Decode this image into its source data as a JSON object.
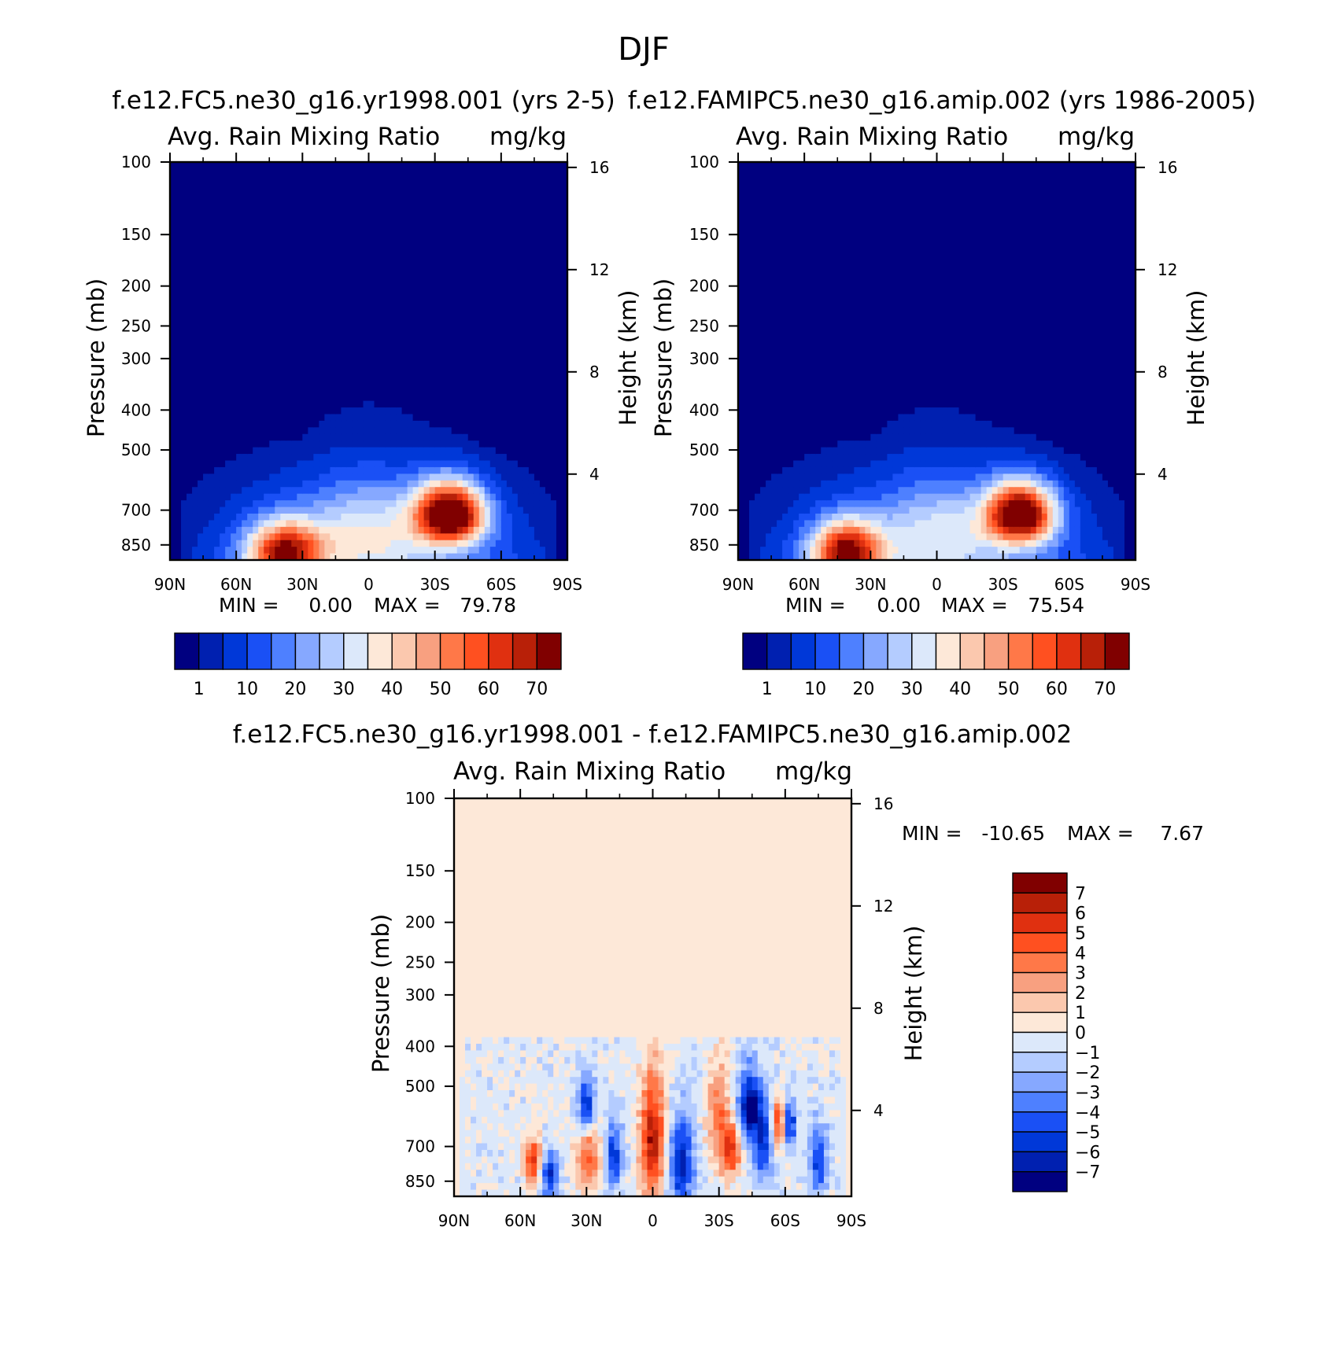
{
  "figure_title": "DJF",
  "colors": {
    "seq": [
      "#000080",
      "#0020b0",
      "#0038d8",
      "#1a50f5",
      "#4e80ff",
      "#86a8ff",
      "#b4ccff",
      "#dce8fa",
      "#fde8d8",
      "#fbc8ae",
      "#f8a080",
      "#ff7848",
      "#ff5020",
      "#e03010",
      "#b82008",
      "#800000"
    ],
    "diff": [
      "#000080",
      "#0020b0",
      "#0038d8",
      "#1a50f5",
      "#4e80ff",
      "#86a8ff",
      "#b4ccff",
      "#dce8fa",
      "#fde8d8",
      "#fbc8ae",
      "#f8a080",
      "#ff7848",
      "#ff5020",
      "#e03010",
      "#b82008",
      "#800000"
    ]
  },
  "chart_data": [
    {
      "type": "heatmap",
      "id": "case",
      "title": "f.e12.FC5.ne30_g16.yr1998.001 (yrs 2-5)",
      "left_label": "Avg. Rain Mixing Ratio",
      "right_label": "mg/kg",
      "ylabel": "Pressure (mb)",
      "y2label": "Height (km)",
      "x_ticks": [
        "90N",
        "60N",
        "30N",
        "0",
        "30S",
        "60S",
        "90S"
      ],
      "y_ticks": [
        "100",
        "150",
        "200",
        "250",
        "300",
        "400",
        "500",
        "700",
        "850"
      ],
      "y_tick_values": [
        100,
        150,
        200,
        250,
        300,
        400,
        500,
        700,
        850
      ],
      "ylim": [
        100,
        925
      ],
      "y2_ticks": [
        "16",
        "12",
        "8",
        "4"
      ],
      "y2_tick_values": [
        16,
        12,
        8,
        4
      ],
      "min_label": "MIN =",
      "min_value": "0.00",
      "max_label": "MAX =",
      "max_value": "79.78",
      "colorbar_labels": [
        "1",
        "10",
        "20",
        "30",
        "40",
        "50",
        "60",
        "70"
      ],
      "levels": [
        0.5,
        1,
        5,
        10,
        15,
        20,
        25,
        30,
        35,
        40,
        45,
        50,
        55,
        60,
        65,
        70,
        75
      ],
      "blobs": [
        {
          "lat": 38,
          "p": 880,
          "amp": 58,
          "slat": 12,
          "sp": 100
        },
        {
          "lat": -37,
          "p": 715,
          "amp": 80,
          "slat": 11,
          "sp": 85
        },
        {
          "lat": 0,
          "p": 790,
          "amp": 24,
          "slat": 20,
          "sp": 160
        }
      ]
    },
    {
      "type": "heatmap",
      "id": "control",
      "title": "f.e12.FAMIPC5.ne30_g16.amip.002 (yrs 1986-2005)",
      "left_label": "Avg. Rain Mixing Ratio",
      "right_label": "mg/kg",
      "ylabel": "Pressure (mb)",
      "y2label": "Height (km)",
      "x_ticks": [
        "90N",
        "60N",
        "30N",
        "0",
        "30S",
        "60S",
        "90S"
      ],
      "y_ticks": [
        "100",
        "150",
        "200",
        "250",
        "300",
        "400",
        "500",
        "700",
        "850"
      ],
      "y_tick_values": [
        100,
        150,
        200,
        250,
        300,
        400,
        500,
        700,
        850
      ],
      "ylim": [
        100,
        925
      ],
      "y2_ticks": [
        "16",
        "12",
        "8",
        "4"
      ],
      "y2_tick_values": [
        16,
        12,
        8,
        4
      ],
      "min_label": "MIN =",
      "min_value": "0.00",
      "max_label": "MAX =",
      "max_value": "75.54",
      "colorbar_labels": [
        "1",
        "10",
        "20",
        "30",
        "40",
        "50",
        "60",
        "70"
      ],
      "levels": [
        0.5,
        1,
        5,
        10,
        15,
        20,
        25,
        30,
        35,
        40,
        45,
        50,
        55,
        60,
        65,
        70,
        75
      ],
      "blobs": [
        {
          "lat": 41,
          "p": 880,
          "amp": 62,
          "slat": 11,
          "sp": 100
        },
        {
          "lat": -38,
          "p": 715,
          "amp": 76,
          "slat": 11,
          "sp": 85
        },
        {
          "lat": 0,
          "p": 790,
          "amp": 22,
          "slat": 20,
          "sp": 160
        }
      ]
    },
    {
      "type": "heatmap",
      "id": "difference",
      "title": "f.e12.FC5.ne30_g16.yr1998.001 - f.e12.FAMIPC5.ne30_g16.amip.002",
      "left_label": "Avg. Rain Mixing Ratio",
      "right_label": "mg/kg",
      "ylabel": "Pressure (mb)",
      "y2label": "Height (km)",
      "x_ticks": [
        "90N",
        "60N",
        "30N",
        "0",
        "30S",
        "60S",
        "90S"
      ],
      "y_ticks": [
        "100",
        "150",
        "200",
        "250",
        "300",
        "400",
        "500",
        "700",
        "850"
      ],
      "y_tick_values": [
        100,
        150,
        200,
        250,
        300,
        400,
        500,
        700,
        850
      ],
      "ylim": [
        100,
        925
      ],
      "y2_ticks": [
        "16",
        "12",
        "8",
        "4"
      ],
      "y2_tick_values": [
        16,
        12,
        8,
        4
      ],
      "min_label": "MIN =",
      "min_value": "-10.65",
      "max_label": "MAX =",
      "max_value": "7.67",
      "colorbar_labels": [
        "7",
        "6",
        "5",
        "4",
        "3",
        "2",
        "1",
        "0",
        "-1",
        "-2",
        "-3",
        "-4",
        "-5",
        "-6",
        "-7"
      ],
      "levels": [
        -7,
        -6,
        -5,
        -4,
        -3,
        -2,
        -1,
        0,
        1,
        2,
        3,
        4,
        5,
        6,
        7
      ],
      "blobs": [
        {
          "lat": 54,
          "p": 760,
          "amp": 6,
          "slat": 3,
          "sp": 70
        },
        {
          "lat": 47,
          "p": 815,
          "amp": -6,
          "slat": 3,
          "sp": 70
        },
        {
          "lat": 29,
          "p": 720,
          "amp": 5,
          "slat": 4,
          "sp": 120
        },
        {
          "lat": 30,
          "p": 565,
          "amp": -7,
          "slat": 3,
          "sp": 70
        },
        {
          "lat": 18,
          "p": 740,
          "amp": -5,
          "slat": 3,
          "sp": 100
        },
        {
          "lat": 0,
          "p": 680,
          "amp": 7,
          "slat": 4,
          "sp": 180
        },
        {
          "lat": -13,
          "p": 770,
          "amp": -6,
          "slat": 4,
          "sp": 140
        },
        {
          "lat": -30,
          "p": 600,
          "amp": 4,
          "slat": 4,
          "sp": 130
        },
        {
          "lat": -36,
          "p": 720,
          "amp": 5,
          "slat": 3,
          "sp": 80
        },
        {
          "lat": -44,
          "p": 560,
          "amp": -7,
          "slat": 4,
          "sp": 80
        },
        {
          "lat": -50,
          "p": 700,
          "amp": -5,
          "slat": 3,
          "sp": 100
        },
        {
          "lat": -57,
          "p": 620,
          "amp": 6,
          "slat": 2,
          "sp": 60
        },
        {
          "lat": -62,
          "p": 620,
          "amp": -6,
          "slat": 2,
          "sp": 60
        },
        {
          "lat": -75,
          "p": 760,
          "amp": -5,
          "slat": 3,
          "sp": 100
        }
      ]
    }
  ]
}
